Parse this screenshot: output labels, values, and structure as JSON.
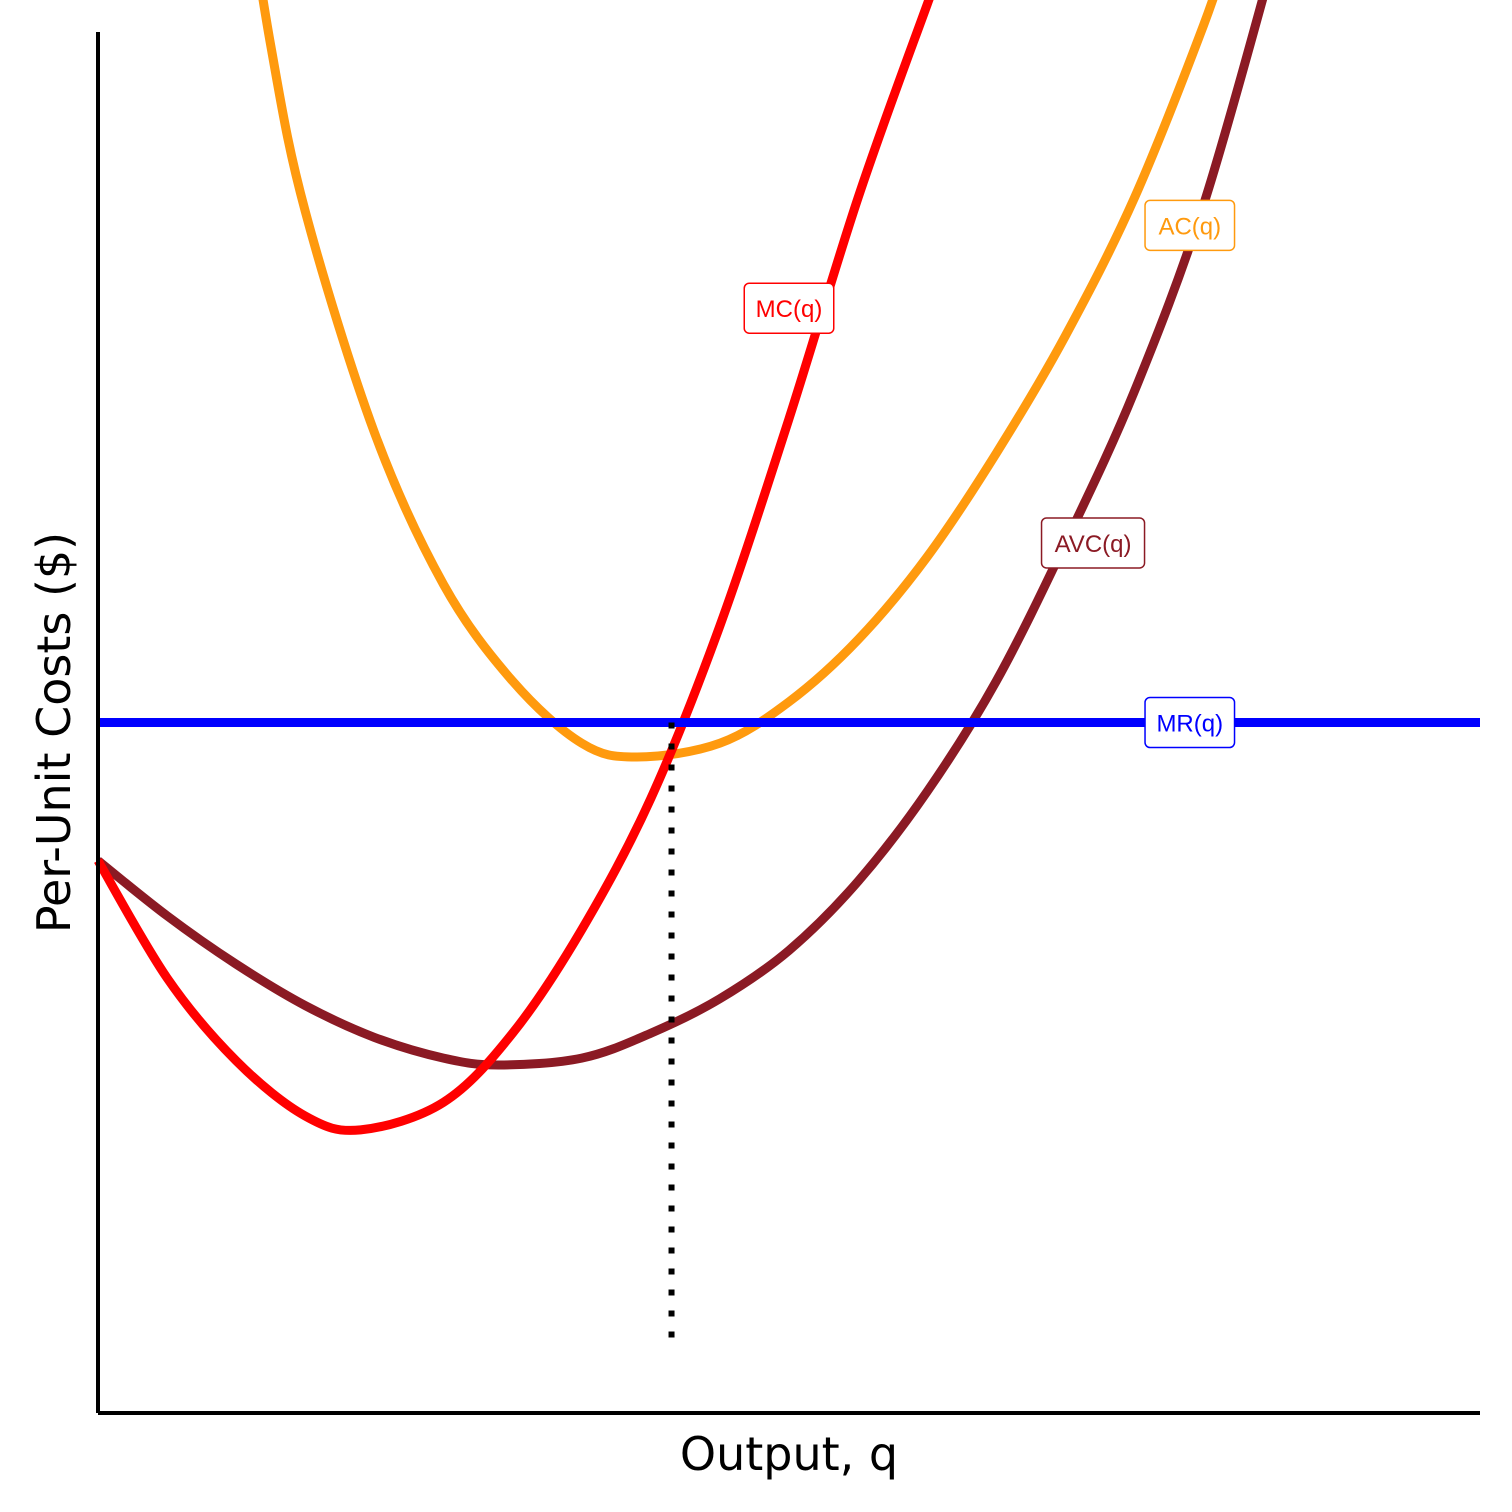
{
  "chart_data": {
    "type": "line",
    "title": "",
    "xlabel": "Output, q",
    "ylabel": "Per-Unit Costs ($)",
    "xlim": [
      0,
      10
    ],
    "ylim": [
      0,
      10
    ],
    "grid": false,
    "legend": "none",
    "series": [
      {
        "name": "MC(q)",
        "color": "#ff0000",
        "x": [
          0,
          0.5,
          1,
          1.5,
          1.9,
          2.5,
          3,
          3.5,
          4,
          4.5,
          5,
          5.5,
          6,
          6.3
        ],
        "y": [
          4.0,
          3.15,
          2.55,
          2.15,
          2.05,
          2.25,
          2.75,
          3.5,
          4.45,
          5.7,
          7.2,
          8.8,
          10.2,
          11.0
        ]
      },
      {
        "name": "AC(q)",
        "color": "#ff9a0e",
        "x": [
          1.0,
          1.25,
          1.5,
          2.0,
          2.5,
          3.0,
          3.5,
          3.9,
          4.5,
          5.0,
          5.5,
          6.0,
          6.5,
          7.0,
          7.5,
          8.0,
          8.2
        ],
        "y": [
          11.5,
          9.9,
          8.7,
          7.1,
          6.0,
          5.3,
          4.85,
          4.75,
          4.85,
          5.15,
          5.6,
          6.2,
          6.95,
          7.8,
          8.8,
          10.05,
          10.65
        ]
      },
      {
        "name": "AVC(q)",
        "color": "#8b1a24",
        "x": [
          0,
          0.5,
          1,
          1.5,
          2,
          2.5,
          2.9,
          3.5,
          4,
          4.5,
          5,
          5.5,
          6,
          6.5,
          7,
          7.5,
          8,
          8.5
        ],
        "y": [
          4.0,
          3.6,
          3.25,
          2.95,
          2.72,
          2.57,
          2.52,
          2.57,
          2.75,
          3.0,
          3.35,
          3.85,
          4.5,
          5.3,
          6.3,
          7.4,
          8.75,
          10.5
        ]
      },
      {
        "name": "MR(q)",
        "color": "#0000ff",
        "x": [
          0,
          10
        ],
        "y": [
          5.0,
          5.0
        ]
      }
    ],
    "annotations": [
      {
        "type": "vline",
        "x": 4.15,
        "y_from": 0.46,
        "y_to": 5.0,
        "style": "dotted"
      }
    ]
  }
}
